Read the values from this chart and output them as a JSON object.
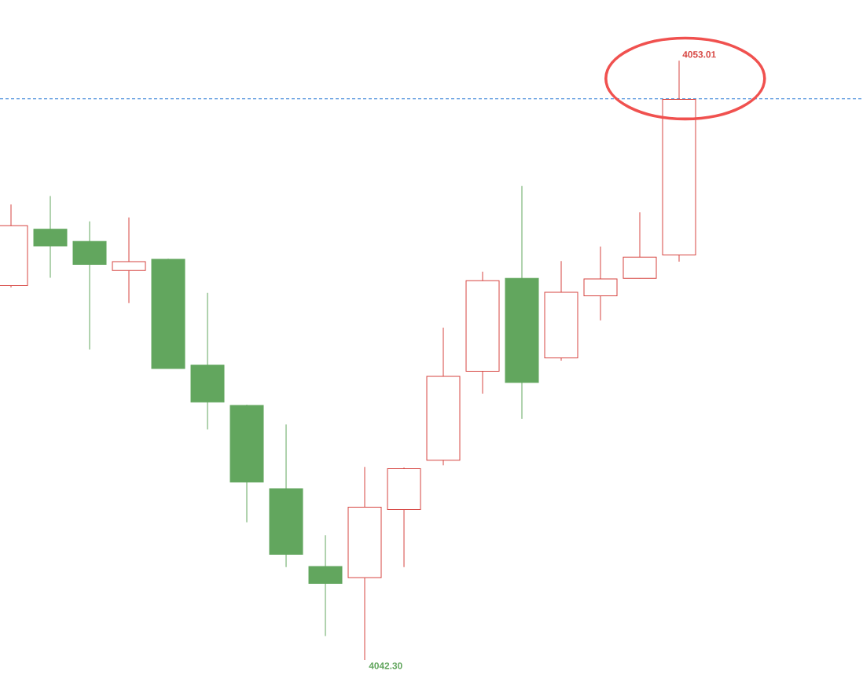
{
  "chart_data": {
    "type": "candlestick",
    "categories": [
      null,
      null,
      null,
      null,
      null,
      null,
      null,
      null,
      null,
      null,
      null,
      null,
      null,
      null,
      null,
      null,
      null,
      null
    ],
    "ohlc": [
      [
        4048.99,
        4050.44,
        4048.96,
        4050.06
      ],
      [
        4050.0,
        4050.59,
        4049.13,
        4049.7
      ],
      [
        4049.78,
        4050.14,
        4047.85,
        4049.37
      ],
      [
        4049.26,
        4050.21,
        4048.68,
        4049.42
      ],
      [
        4049.46,
        4049.47,
        4047.51,
        4047.51
      ],
      [
        4047.57,
        4048.86,
        4046.42,
        4046.91
      ],
      [
        4046.85,
        4046.86,
        4044.76,
        4045.48
      ],
      [
        4045.36,
        4046.51,
        4043.96,
        4044.19
      ],
      [
        4043.97,
        4044.53,
        4042.73,
        4043.67
      ],
      [
        4043.77,
        4045.75,
        4042.3,
        4045.03
      ],
      [
        4044.99,
        4045.74,
        4043.96,
        4045.72
      ],
      [
        4045.87,
        4048.24,
        4045.78,
        4047.37
      ],
      [
        4047.46,
        4049.24,
        4047.06,
        4049.08
      ],
      [
        4049.12,
        4050.77,
        4046.61,
        4047.26
      ],
      [
        4047.7,
        4049.43,
        4047.65,
        4048.87
      ],
      [
        4048.81,
        4049.69,
        4048.37,
        4049.11
      ],
      [
        4049.12,
        4050.3,
        4049.12,
        4049.5
      ],
      [
        4049.54,
        4053.01,
        4049.42,
        4052.32
      ]
    ],
    "colors": [
      "#d64541",
      "#62a65e",
      "#62a65e",
      "#d64541",
      "#62a65e",
      "#62a65e",
      "#62a65e",
      "#62a65e",
      "#62a65e",
      "#d64541",
      "#d64541",
      "#d64541",
      "#d64541",
      "#62a65e",
      "#d64541",
      "#d64541",
      "#d64541",
      "#d64541"
    ],
    "ref_lines": [
      {
        "axis": "y",
        "value": 4052.33,
        "color": "#2b7bd6",
        "line_style": "dashed"
      }
    ],
    "annotations": [
      "4053.01",
      "4042.30"
    ]
  }
}
